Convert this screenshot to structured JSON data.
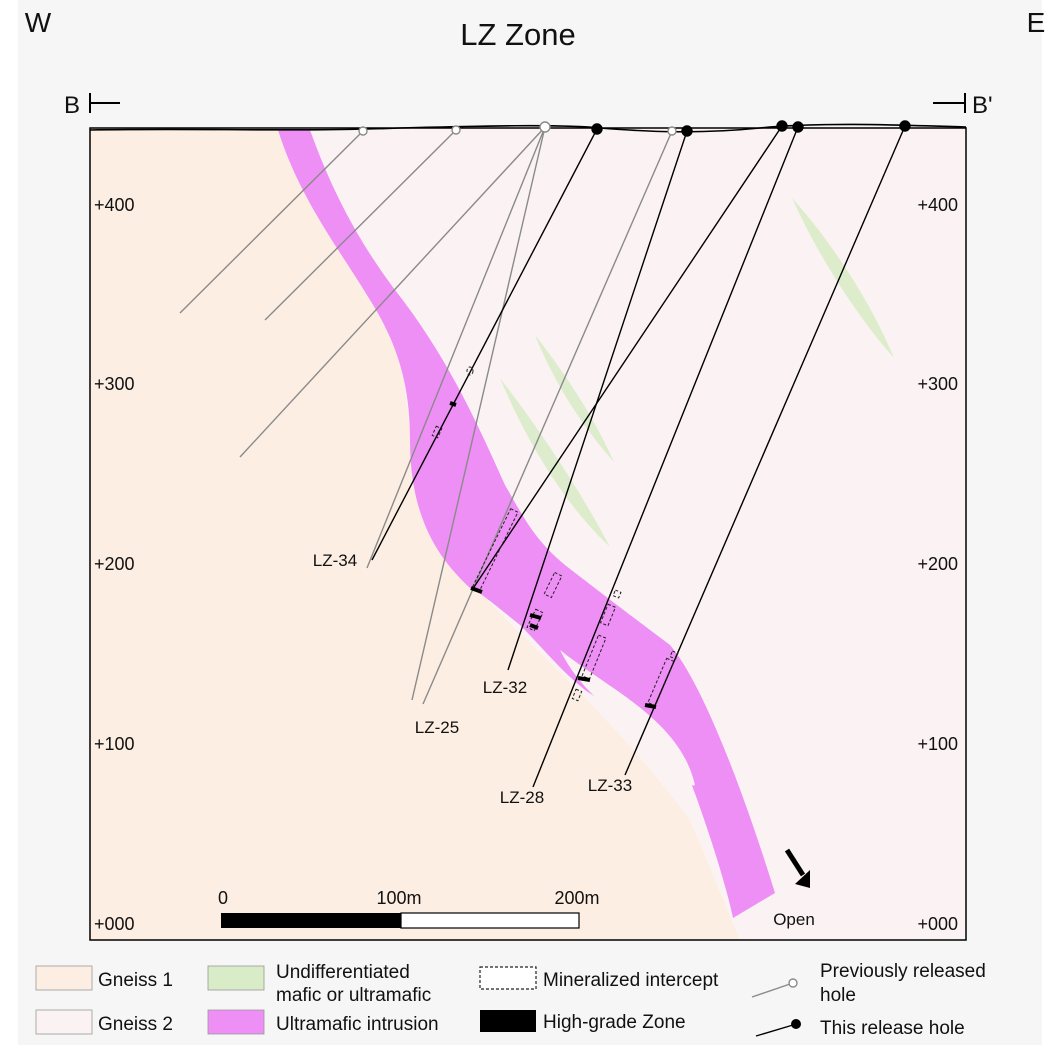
{
  "title": "LZ Zone",
  "orientation": {
    "west": "W",
    "east": "E"
  },
  "section_line": {
    "start": "B",
    "end": "B'"
  },
  "elevation_labels": [
    "+400",
    "+300",
    "+200",
    "+100",
    "+000"
  ],
  "scale_bar": {
    "labels": [
      "0",
      "100m",
      "200m"
    ]
  },
  "open_label": "Open",
  "drill_holes": [
    {
      "id": "LZ-34",
      "type": "this_release",
      "label": "LZ-34"
    },
    {
      "id": "LZ-25",
      "type": "previously_released",
      "label": "LZ-25"
    },
    {
      "id": "LZ-32",
      "type": "this_release",
      "label": "LZ-32"
    },
    {
      "id": "LZ-28",
      "type": "this_release",
      "label": "LZ-28"
    },
    {
      "id": "LZ-33",
      "type": "this_release",
      "label": "LZ-33"
    }
  ],
  "legend": {
    "gneiss1": "Gneiss 1",
    "gneiss2": "Gneiss 2",
    "undiff_line1": "Undifferentiated",
    "undiff_line2": "mafic or ultramafic",
    "ultramafic": "Ultramafic intrusion",
    "mineralized": "Mineralized intercept",
    "highgrade": "High-grade Zone",
    "prev_line1": "Previously released",
    "prev_line2": "hole",
    "this_release": "This release hole"
  },
  "colors": {
    "gneiss1": "#fdeee3",
    "gneiss2": "#fbf3f3",
    "undifferentiated": "#d9ecc8",
    "ultramafic": "#ee8ff5",
    "frame_bg": "#f6f6f6"
  }
}
